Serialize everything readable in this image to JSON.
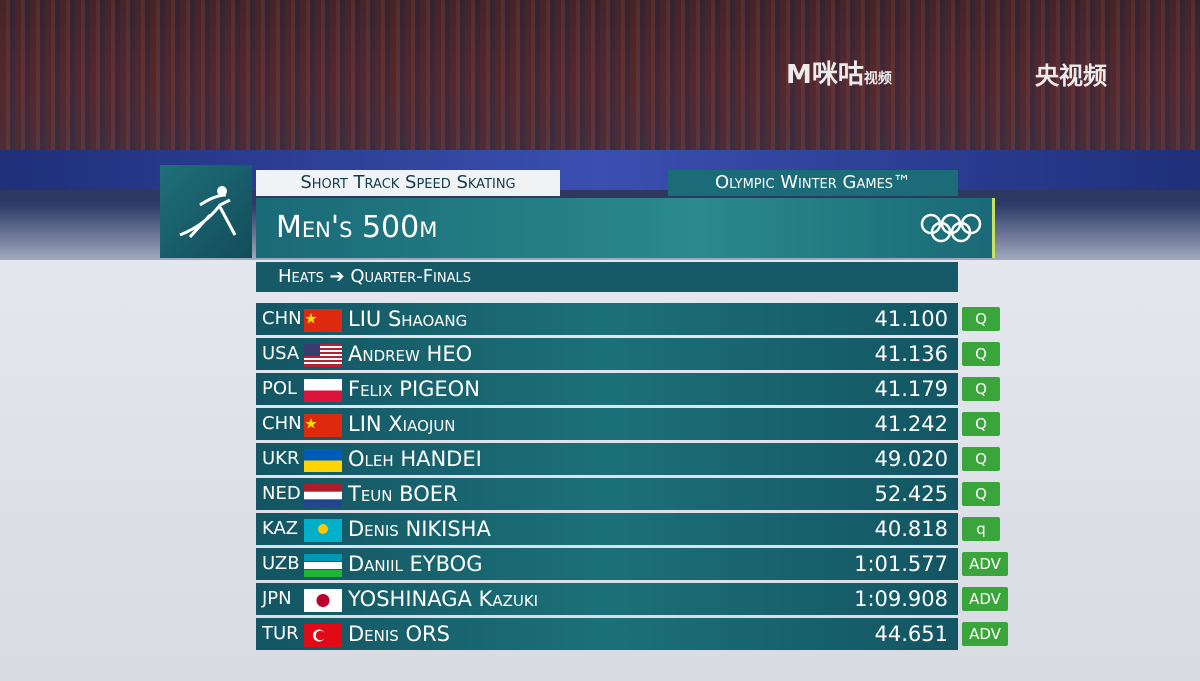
{
  "header": {
    "sport": "Short Track Speed Skating",
    "games": "Olympic Winter Games™",
    "event": "Men's 500m",
    "round_from": "Heats",
    "round_to": "Quarter-Finals"
  },
  "watermark": {
    "migu": "咪咕",
    "migu_video": "视频",
    "cctv": "央视频"
  },
  "results": [
    [
      "CHN",
      "LIU Shaoang",
      "41.100",
      "Q"
    ],
    [
      "USA",
      "Andrew HEO",
      "41.136",
      "Q"
    ],
    [
      "POL",
      "Felix PIGEON",
      "41.179",
      "Q"
    ],
    [
      "CHN",
      "LIN Xiaojun",
      "41.242",
      "Q"
    ],
    [
      "UKR",
      "Oleh HANDEI",
      "49.020",
      "Q"
    ],
    [
      "NED",
      "Teun BOER",
      "52.425",
      "Q"
    ],
    [
      "KAZ",
      "Denis NIKISHA",
      "40.818",
      "q"
    ],
    [
      "UZB",
      "Daniil EYBOG",
      "1:01.577",
      "ADV"
    ],
    [
      "JPN",
      "YOSHINAGA Kazuki",
      "1:09.908",
      "ADV"
    ],
    [
      "TUR",
      "Denis ORS",
      "44.651",
      "ADV"
    ]
  ]
}
